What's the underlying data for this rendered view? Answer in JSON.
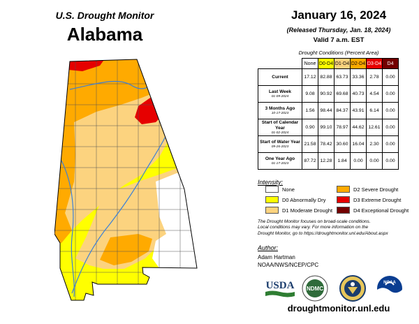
{
  "header": {
    "subtitle": "U.S. Drought Monitor",
    "state": "Alabama"
  },
  "date": {
    "title": "January 16, 2024",
    "released": "(Released Thursday, Jan. 18, 2024)",
    "valid": "Valid 7 a.m. EST"
  },
  "table": {
    "caption": "Drought Conditions (Percent Area)",
    "columns": [
      "None",
      "D0-D4",
      "D1-D4",
      "D2-D4",
      "D3-D4",
      "D4"
    ],
    "column_colors": [
      "#ffffff",
      "#ffff00",
      "#fcd37f",
      "#ffaa00",
      "#e60000",
      "#730000"
    ],
    "rows": [
      {
        "label": "Current",
        "date": "",
        "values": [
          "17.12",
          "82.88",
          "63.73",
          "33.36",
          "2.78",
          "0.00"
        ]
      },
      {
        "label": "Last Week",
        "date": "01-09-2024",
        "values": [
          "9.08",
          "90.92",
          "69.68",
          "40.73",
          "4.54",
          "0.00"
        ]
      },
      {
        "label": "3 Months Ago",
        "date": "10-17-2023",
        "values": [
          "1.56",
          "98.44",
          "84.37",
          "43.91",
          "6.14",
          "0.00"
        ]
      },
      {
        "label": "Start of Calendar Year",
        "date": "01-02-2024",
        "values": [
          "0.90",
          "99.10",
          "78.97",
          "44.62",
          "12.61",
          "0.00"
        ]
      },
      {
        "label": "Start of Water Year",
        "date": "09-26-2023",
        "values": [
          "21.58",
          "78.42",
          "30.60",
          "16.04",
          "2.30",
          "0.00"
        ]
      },
      {
        "label": "One Year Ago",
        "date": "01-17-2023",
        "values": [
          "87.72",
          "12.28",
          "1.84",
          "0.00",
          "0.00",
          "0.00"
        ]
      }
    ]
  },
  "intensity": {
    "title": "Intensity:",
    "items": [
      {
        "label": "None",
        "color": "#ffffff"
      },
      {
        "label": "D0 Abnormally Dry",
        "color": "#ffff00"
      },
      {
        "label": "D1 Moderate Drought",
        "color": "#fcd37f"
      },
      {
        "label": "D2 Severe Drought",
        "color": "#ffaa00"
      },
      {
        "label": "D3 Extreme Drought",
        "color": "#e60000"
      },
      {
        "label": "D4 Exceptional Drought",
        "color": "#730000"
      }
    ]
  },
  "note": {
    "line1": "The Drought Monitor focuses on broad-scale conditions.",
    "line2": "Local conditions may vary. For more information on the",
    "line3": "Drought Monitor, go to https://droughtmonitor.unl.edu/About.aspx"
  },
  "author": {
    "title": "Author:",
    "name": "Adam Hartman",
    "org": "NOAA/NWS/NCEP/CPC"
  },
  "logos": {
    "usda": "USDA",
    "ndmc": "NDMC",
    "noaa": "NOAA"
  },
  "site": "droughtmonitor.unl.edu"
}
